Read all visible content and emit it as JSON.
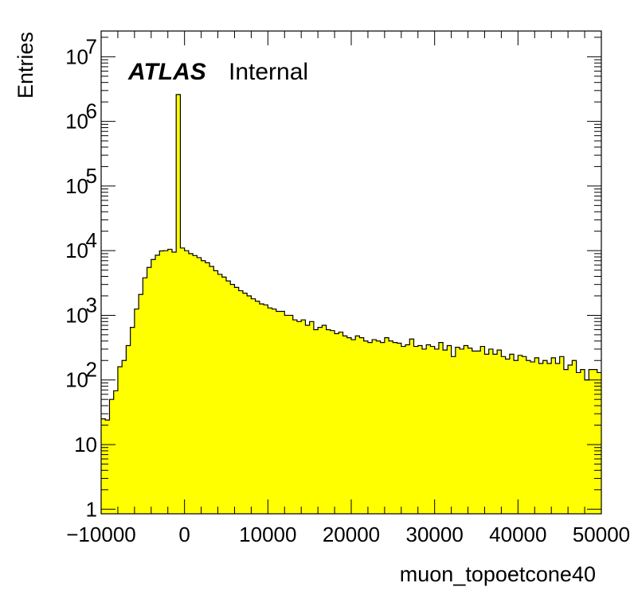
{
  "chart_data": {
    "type": "bar",
    "style": "histogram",
    "fill_color": "#ffff00",
    "line_color": "#000000",
    "xlabel": "muon_topoetcone40",
    "ylabel": "Entries",
    "label_bold": "ATLAS",
    "label_text": "Internal",
    "xlim": [
      -10000,
      50000
    ],
    "ylim": [
      0.85,
      25000000
    ],
    "yscale": "log",
    "grid": false,
    "x_ticks": [
      {
        "value": -10000,
        "label": "−10000"
      },
      {
        "value": 0,
        "label": "0"
      },
      {
        "value": 10000,
        "label": "10000"
      },
      {
        "value": 20000,
        "label": "20000"
      },
      {
        "value": 30000,
        "label": "30000"
      },
      {
        "value": 40000,
        "label": "40000"
      },
      {
        "value": 50000,
        "label": "50000"
      }
    ],
    "y_ticks": [
      {
        "value": 1,
        "base": "1",
        "exp": ""
      },
      {
        "value": 10,
        "base": "10",
        "exp": ""
      },
      {
        "value": 100,
        "base": "10",
        "exp": "2"
      },
      {
        "value": 1000,
        "base": "10",
        "exp": "3"
      },
      {
        "value": 10000,
        "base": "10",
        "exp": "4"
      },
      {
        "value": 100000,
        "base": "10",
        "exp": "5"
      },
      {
        "value": 1000000,
        "base": "10",
        "exp": "6"
      },
      {
        "value": 10000000,
        "base": "10",
        "exp": "7"
      }
    ],
    "bin_start": -10000,
    "bin_width": 500,
    "values": [
      25,
      24,
      50,
      68,
      160,
      200,
      340,
      650,
      1250,
      2100,
      3800,
      5500,
      7300,
      8500,
      9900,
      10000,
      10500,
      9500,
      2600000,
      11000,
      10000,
      9000,
      8400,
      7800,
      7000,
      6500,
      5700,
      4900,
      4300,
      3900,
      3400,
      3000,
      2700,
      2400,
      2200,
      2000,
      1800,
      1650,
      1500,
      1450,
      1300,
      1250,
      1150,
      1150,
      1000,
      1000,
      850,
      800,
      850,
      700,
      800,
      600,
      650,
      700,
      600,
      580,
      520,
      550,
      480,
      450,
      420,
      480,
      450,
      400,
      380,
      420,
      400,
      380,
      450,
      400,
      380,
      370,
      330,
      350,
      430,
      330,
      340,
      300,
      350,
      330,
      300,
      380,
      290,
      340,
      230,
      320,
      300,
      340,
      310,
      280,
      280,
      330,
      250,
      300,
      250,
      290,
      230,
      210,
      250,
      200,
      240,
      230,
      200,
      190,
      220,
      180,
      200,
      180,
      220,
      180,
      230,
      145,
      170,
      200,
      130,
      145,
      100,
      145,
      145,
      130
    ]
  }
}
